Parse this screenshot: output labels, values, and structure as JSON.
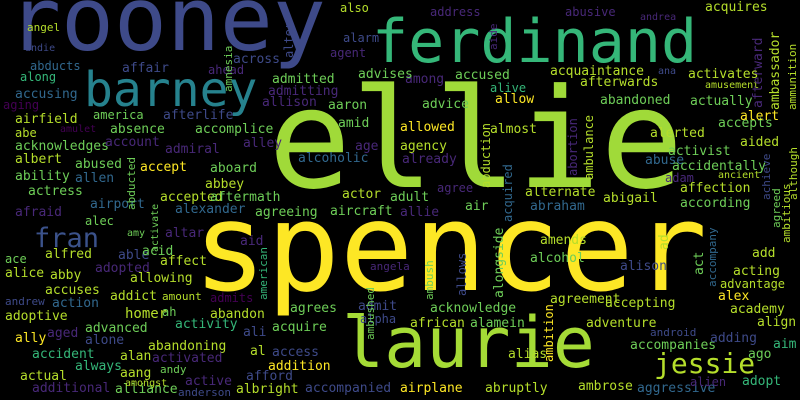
{
  "words": [
    "rooney",
    "ferdinand",
    "ellie",
    "spencer",
    "laurie",
    "barney",
    "fran",
    "jessie",
    "angel",
    "andie",
    "abducts",
    "along",
    "affair",
    "ahead",
    "across",
    "alter",
    "amnesia",
    "also",
    "address",
    "abusive",
    "andrea",
    "acquires",
    "agent",
    "alarm",
    "aide",
    "ana",
    "amusement",
    "afterward",
    "ambassador",
    "ammunition",
    "accusing",
    "aging",
    "airfield",
    "abe",
    "acknowledges",
    "albert",
    "ability",
    "actress",
    "afraid",
    "airport",
    "alec",
    "allen",
    "abused",
    "america",
    "afterlife",
    "amulet",
    "absence",
    "accomplice",
    "account",
    "admiral",
    "alley",
    "allison",
    "admitted",
    "admitting",
    "aaron",
    "amid",
    "age",
    "alcoholic",
    "accept",
    "aboard",
    "abbey",
    "abducted",
    "accepted",
    "aftermath",
    "alexander",
    "agreeing",
    "actor",
    "adult",
    "aircraft",
    "allie",
    "amy",
    "activate",
    "altar",
    "aid",
    "alfred",
    "able",
    "acid",
    "affect",
    "ace",
    "alice",
    "abby",
    "adopted",
    "allowing",
    "accuses",
    "andrew",
    "action",
    "addict",
    "amount",
    "admits",
    "adoptive",
    "homer",
    "ah",
    "abandon",
    "activity",
    "aged",
    "advanced",
    "ally",
    "alone",
    "ali",
    "acquire",
    "agrees",
    "admit",
    "alpha",
    "abandoning",
    "al",
    "access",
    "accident",
    "alan",
    "activated",
    "actual",
    "always",
    "aang",
    "andy",
    "addition",
    "additional",
    "alliance",
    "active",
    "afford",
    "albright",
    "amongst",
    "anderson",
    "accompanied",
    "airplane",
    "abruptly",
    "ambrose",
    "aggressive",
    "alien",
    "adopt",
    "alias",
    "adventure",
    "accompanies",
    "android",
    "adding",
    "ago",
    "aim",
    "align",
    "academy",
    "alex",
    "advantage",
    "add",
    "acting",
    "agreement",
    "accepting",
    "alison",
    "amends",
    "alcohol",
    "angela",
    "african",
    "alamein",
    "acknowledge",
    "alternate",
    "abraham",
    "air",
    "agree",
    "already",
    "agency",
    "allowed",
    "almost",
    "accused",
    "among",
    "advises",
    "advice",
    "alive",
    "allow",
    "acquaintance",
    "afterwards",
    "abandoned",
    "actually",
    "activates",
    "accepts",
    "alert",
    "aided",
    "alerted",
    "activist",
    "abuse",
    "accidentally",
    "adam",
    "ancient",
    "affection",
    "abigail",
    "according",
    "abduction",
    "acquired",
    "abortion",
    "ambulance",
    "ambition",
    "alongside",
    "allows",
    "ambush",
    "ambushed",
    "american",
    "ad",
    "act",
    "accompany",
    "achieve",
    "agreed",
    "ambitious",
    "although"
  ]
}
